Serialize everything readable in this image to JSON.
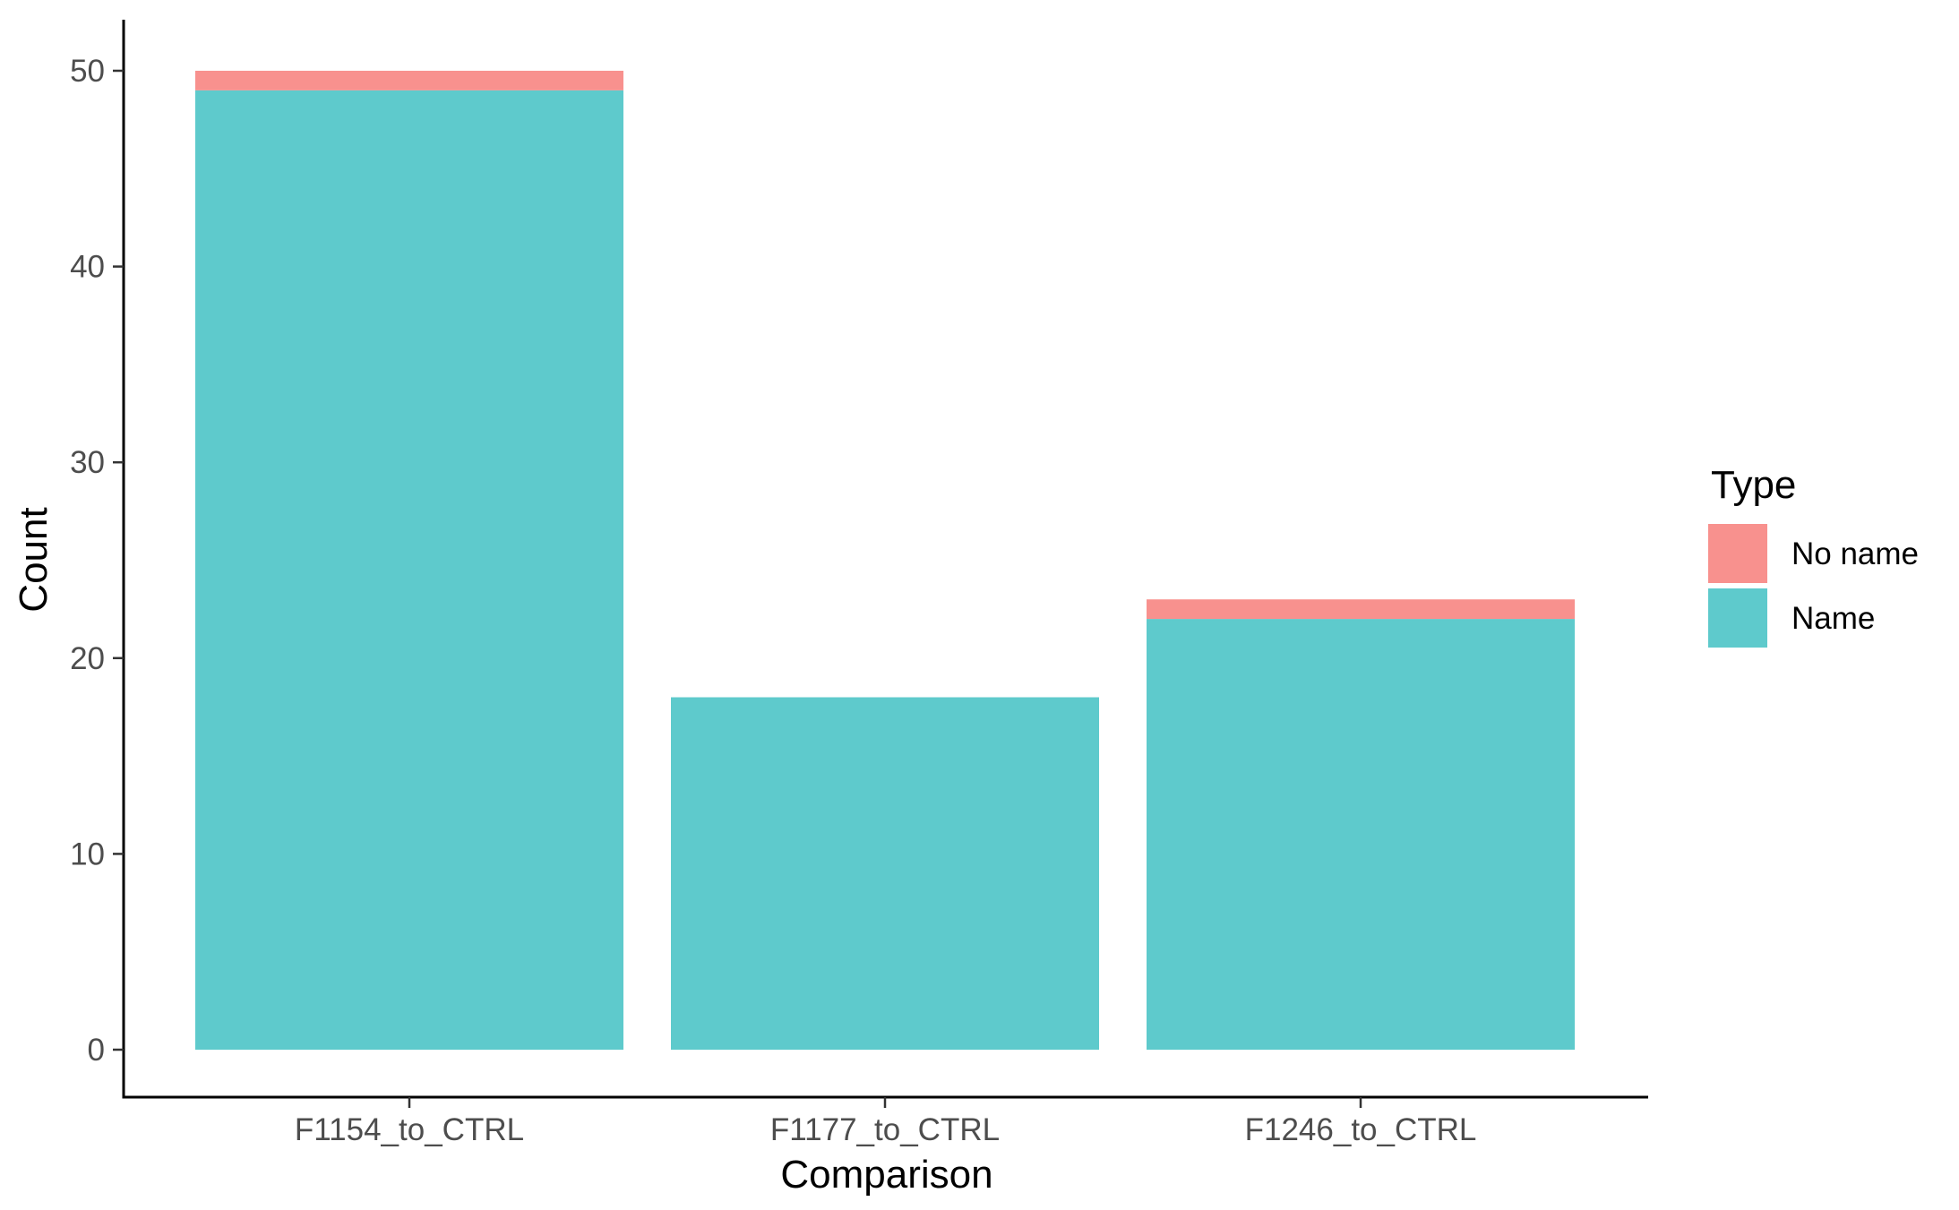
{
  "chart_data": {
    "type": "bar",
    "stacked": true,
    "categories": [
      "F1154_to_CTRL",
      "F1177_to_CTRL",
      "F1246_to_CTRL"
    ],
    "series": [
      {
        "name": "Name",
        "values": [
          49,
          18,
          22
        ],
        "color": "#5ECACC"
      },
      {
        "name": "No name",
        "values": [
          1,
          0,
          1
        ],
        "color": "#F8918E"
      }
    ],
    "title": "",
    "xlabel": "Comparison",
    "ylabel": "Count",
    "ylim": [
      0,
      52.5
    ],
    "yticks": [
      0,
      10,
      20,
      30,
      40,
      50
    ],
    "grid": false,
    "legend": {
      "title": "Type",
      "position": "right",
      "order": [
        "No name",
        "Name"
      ]
    }
  }
}
